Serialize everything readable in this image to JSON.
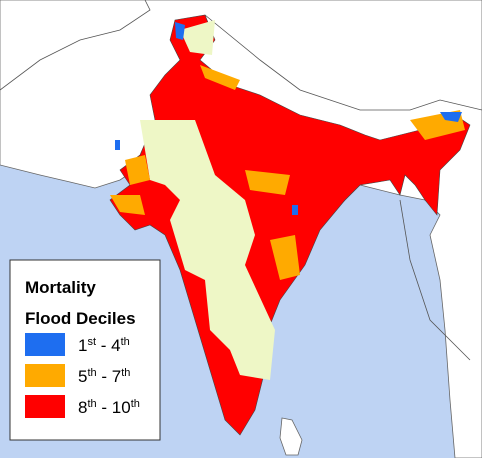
{
  "legend": {
    "title": "Mortality",
    "subtitle": "Flood Deciles",
    "items": [
      {
        "label_parts": [
          "1",
          "st",
          " - 4",
          "th"
        ],
        "color": "#1e6ef0"
      },
      {
        "label_parts": [
          "5",
          "th",
          " - 7",
          "th"
        ],
        "color": "#ffaa00"
      },
      {
        "label_parts": [
          "8",
          "th",
          " - 10",
          "th"
        ],
        "color": "#ff0000"
      }
    ]
  }
}
